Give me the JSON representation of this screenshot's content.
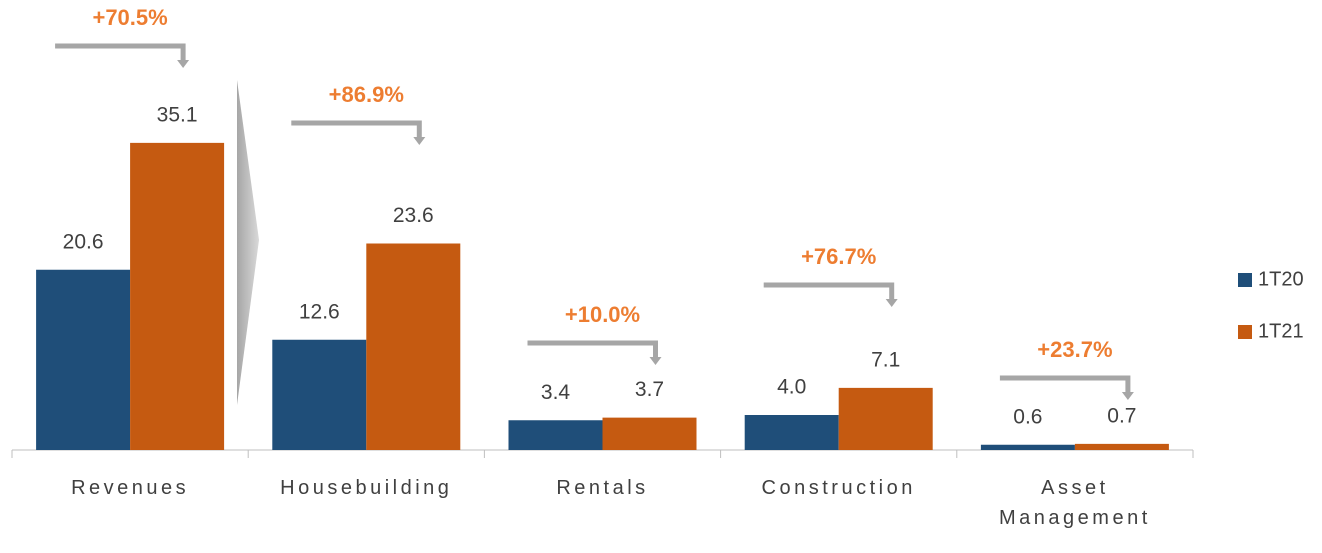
{
  "chart_data": {
    "type": "bar",
    "categories": [
      "Revenues",
      "Housebuilding",
      "Rentals",
      "Construction",
      "Asset Management"
    ],
    "series": [
      {
        "name": "1T20",
        "color": "#1f4e79",
        "values": [
          20.6,
          12.6,
          3.4,
          4.0,
          0.6
        ],
        "value_labels": [
          "20.6",
          "12.6",
          "3.4",
          "4.0",
          "0.6"
        ]
      },
      {
        "name": "1T21",
        "color": "#c55a11",
        "values": [
          35.1,
          23.6,
          3.7,
          7.1,
          0.7
        ]
      }
    ],
    "annotations": [
      "+70.5%",
      "+86.9%",
      "+10.0%",
      "+76.7%",
      "+23.7%"
    ],
    "annotation_color": "#ed7d31",
    "ylim": [
      0,
      40
    ],
    "legend": "right"
  }
}
